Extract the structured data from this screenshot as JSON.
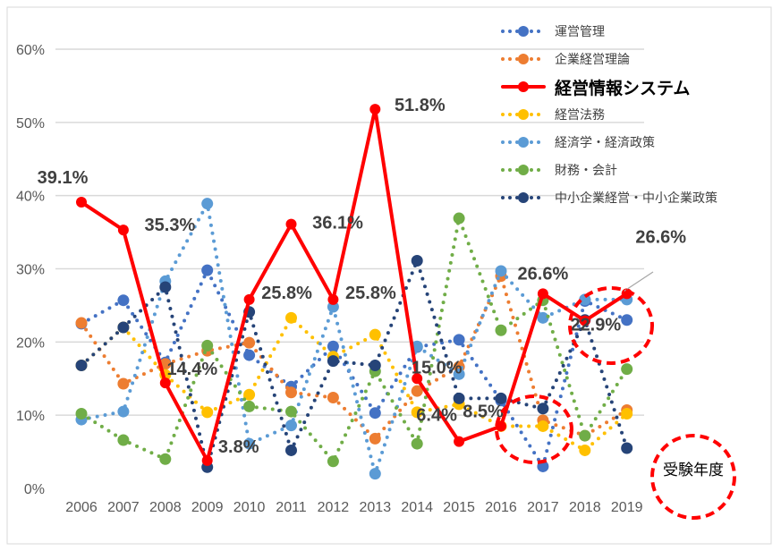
{
  "chart_data": {
    "type": "line",
    "title": "",
    "xlabel": "受験年度",
    "ylabel": "",
    "ylim": [
      0,
      0.6
    ],
    "yticks": [
      "0%",
      "10%",
      "20%",
      "30%",
      "40%",
      "50%",
      "60%"
    ],
    "categories": [
      "2006",
      "2007",
      "2008",
      "2009",
      "2010",
      "2011",
      "2012",
      "2013",
      "2014",
      "2015",
      "2016",
      "2017",
      "2018",
      "2019"
    ],
    "grid": true,
    "legend_position": "top-right",
    "series": [
      {
        "name": "運営管理",
        "color": "#4472C4",
        "style": "dotted",
        "values": [
          0.225,
          0.257,
          0.172,
          0.298,
          0.182,
          0.139,
          0.194,
          0.103,
          0.193,
          0.203,
          0.12,
          0.03,
          0.256,
          0.23
        ]
      },
      {
        "name": "企業経営理論",
        "color": "#ED7D31",
        "style": "dotted",
        "values": [
          0.226,
          0.143,
          0.17,
          0.188,
          0.199,
          0.131,
          0.124,
          0.068,
          0.133,
          0.166,
          0.29,
          0.093,
          0.072,
          0.107
        ]
      },
      {
        "name": "経営情報システム",
        "color": "#FF0000",
        "style": "solid",
        "values": [
          0.391,
          0.353,
          0.144,
          0.038,
          0.258,
          0.361,
          0.258,
          0.518,
          0.15,
          0.064,
          0.085,
          0.266,
          0.229,
          0.266
        ],
        "labels": [
          "39.1%",
          "35.3%",
          "14.4%",
          "3.8%",
          "25.8%",
          "36.1%",
          "25.8%",
          "51.8%",
          "15.0%",
          "6.4%",
          "8.5%",
          "26.6%",
          "22.9%",
          "26.6%"
        ]
      },
      {
        "name": "経営法務",
        "color": "#FFC000",
        "style": "dotted",
        "values": [
          0.168,
          0.22,
          0.155,
          0.104,
          0.128,
          0.233,
          0.18,
          0.21,
          0.104,
          0.115,
          0.085,
          0.085,
          0.052,
          0.102
        ]
      },
      {
        "name": "経済学・経済政策",
        "color": "#5B9BD5",
        "style": "dotted",
        "values": [
          0.094,
          0.105,
          0.283,
          0.389,
          0.061,
          0.086,
          0.248,
          0.02,
          0.194,
          0.156,
          0.297,
          0.233,
          0.258,
          0.258
        ]
      },
      {
        "name": "財務・会計",
        "color": "#70AD47",
        "style": "dotted",
        "values": [
          0.102,
          0.066,
          0.04,
          0.195,
          0.112,
          0.105,
          0.037,
          0.16,
          0.061,
          0.369,
          0.216,
          0.257,
          0.072,
          0.163
        ]
      },
      {
        "name": "中小企業経営・中小企業政策",
        "color": "#264478",
        "style": "dotted",
        "values": [
          0.168,
          0.22,
          0.275,
          0.029,
          0.241,
          0.052,
          0.174,
          0.168,
          0.311,
          0.123,
          0.123,
          0.109,
          0.23,
          0.055
        ]
      }
    ]
  }
}
